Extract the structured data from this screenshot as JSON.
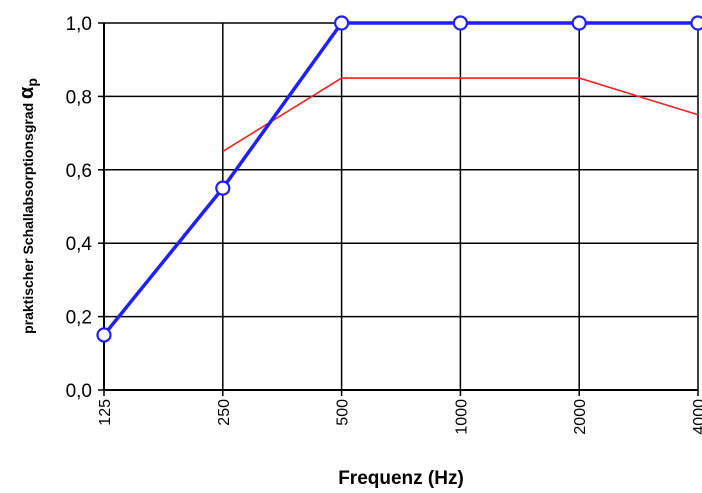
{
  "chart_data": {
    "type": "line",
    "categories": [
      "125",
      "250",
      "500",
      "1000",
      "2000",
      "4000"
    ],
    "y_ticks": [
      "0,0",
      "0,2",
      "0,4",
      "0,6",
      "0,8",
      "1,0"
    ],
    "ylim": [
      0,
      1
    ],
    "xlabel": "Frequenz (Hz)",
    "ylabel": {
      "text": "praktischer Schallabsorptionsgrad ",
      "symbol": "α",
      "subscript": "p"
    },
    "grid": true,
    "legend": "none",
    "series": [
      {
        "values": [
          0.15,
          0.55,
          1.0,
          1.0,
          1.0,
          1.0
        ],
        "color": "#1f1fff",
        "markers": "circle"
      },
      {
        "values": [
          null,
          0.65,
          0.85,
          0.85,
          0.85,
          0.75
        ],
        "color": "#ff2020",
        "markers": "none"
      }
    ]
  }
}
